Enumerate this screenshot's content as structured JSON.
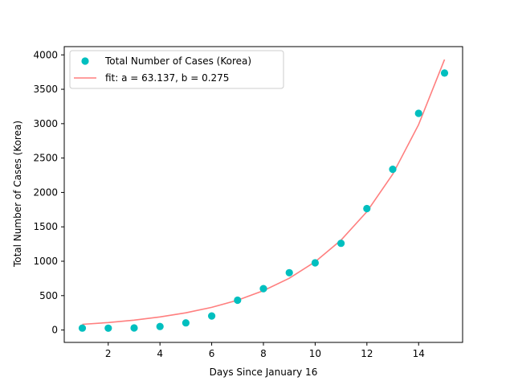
{
  "chart_data": {
    "type": "scatter",
    "xlabel": "Days Since January 16",
    "ylabel": "Total Number of Cases (Korea)",
    "xlim": [
      0.3,
      15.7
    ],
    "ylim": [
      -180,
      4120
    ],
    "xticks": [
      2,
      4,
      6,
      8,
      10,
      12,
      14
    ],
    "yticks": [
      0,
      500,
      1000,
      1500,
      2000,
      2500,
      3000,
      3500,
      4000
    ],
    "grid": false,
    "legend_position": "top-left",
    "series": [
      {
        "name": "Total Number of Cases (Korea)",
        "kind": "scatter",
        "color": "#00bfbf",
        "x": [
          1,
          2,
          3,
          4,
          5,
          6,
          7,
          8,
          9,
          10,
          11,
          12,
          13,
          14,
          15
        ],
        "y": [
          28,
          27,
          30,
          51,
          104,
          204,
          433,
          602,
          833,
          977,
          1261,
          1766,
          2337,
          3150,
          3736
        ]
      },
      {
        "name": "fit: a = 63.137, b = 0.275",
        "kind": "line",
        "color": "#ff7f7f",
        "x": [
          1,
          2,
          3,
          4,
          5,
          6,
          7,
          8,
          9,
          10,
          11,
          12,
          13,
          14,
          15
        ],
        "y": [
          83,
          109,
          144,
          190,
          250,
          330,
          434,
          572,
          753,
          992,
          1306,
          1720,
          2266,
          2985,
          3932
        ]
      }
    ]
  }
}
